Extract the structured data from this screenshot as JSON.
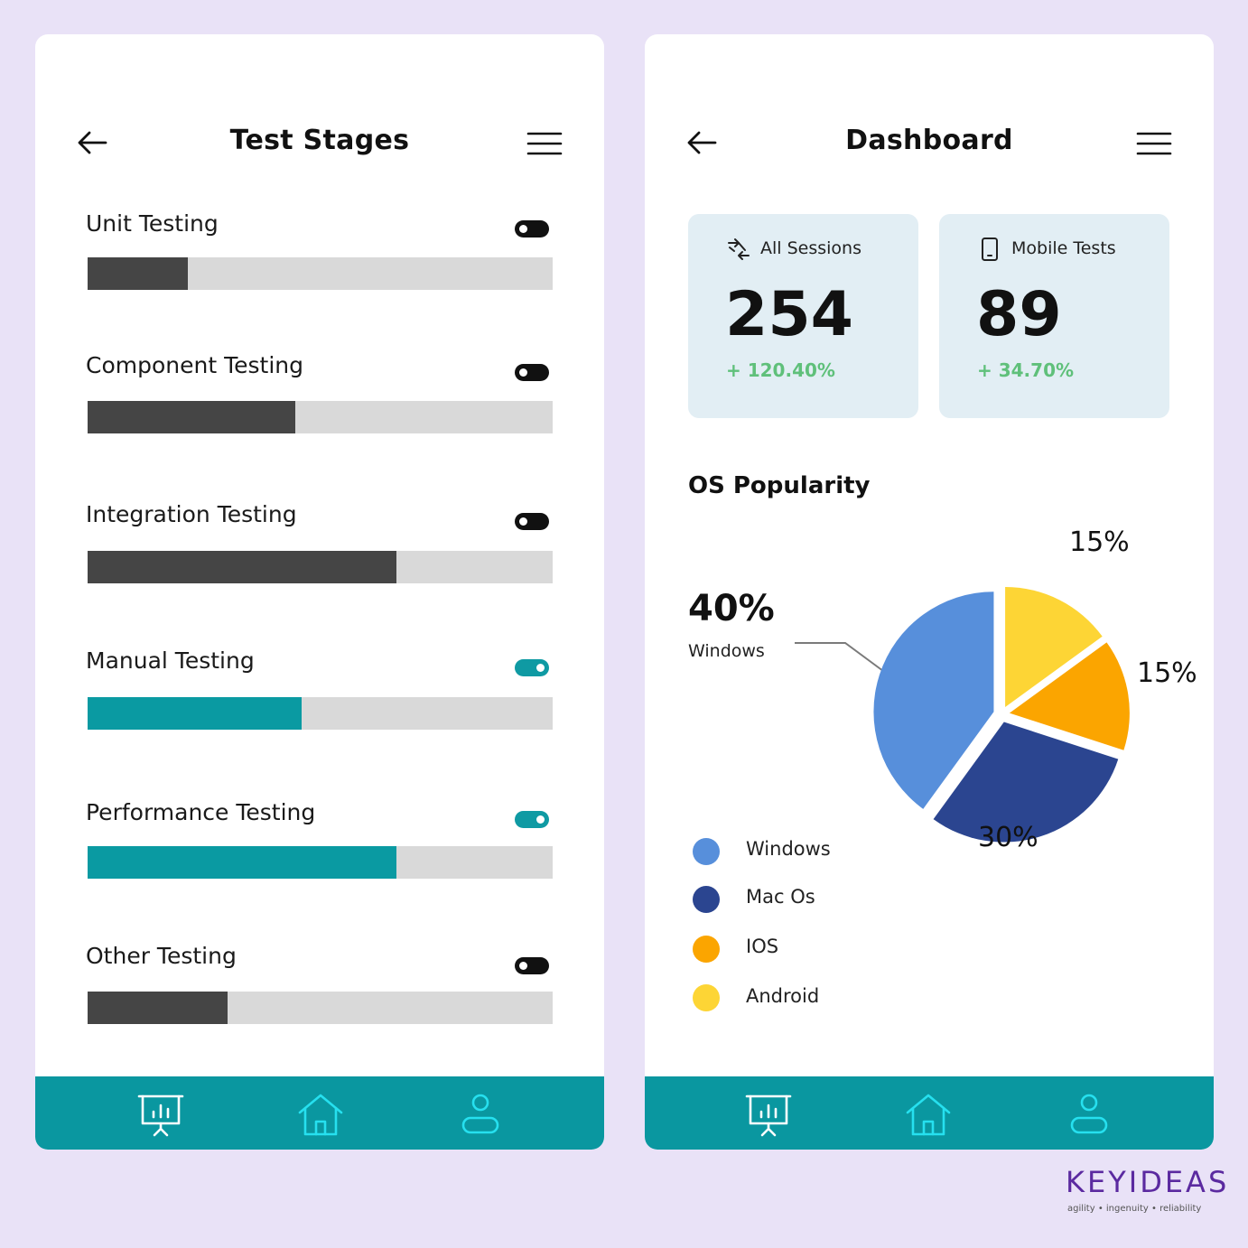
{
  "left_screen": {
    "title": "Test Stages",
    "stages": [
      {
        "label": "Unit Testing",
        "progress": 0.215,
        "enabled": false
      },
      {
        "label": "Component Testing",
        "progress": 0.447,
        "enabled": false
      },
      {
        "label": "Integration Testing",
        "progress": 0.665,
        "enabled": false
      },
      {
        "label": "Manual Testing",
        "progress": 0.461,
        "enabled": true
      },
      {
        "label": "Performance Testing",
        "progress": 0.665,
        "enabled": true
      },
      {
        "label": "Other Testing",
        "progress": 0.3,
        "enabled": false
      }
    ]
  },
  "right_screen": {
    "title": "Dashboard",
    "cards": [
      {
        "icon": "sessions-icon",
        "label": "All Sessions",
        "value": "254",
        "change": "+ 120.40%"
      },
      {
        "icon": "mobile-icon",
        "label": "Mobile Tests",
        "value": "89",
        "change": "+ 34.70%"
      }
    ],
    "os_title": "OS Popularity",
    "callout": {
      "value": "40%",
      "label": "Windows"
    },
    "chart_data": {
      "type": "pie",
      "title": "OS Popularity",
      "slices": [
        {
          "name": "Windows",
          "value": 40,
          "label": "40%",
          "color": "#578fdb"
        },
        {
          "name": "Mac Os",
          "value": 30,
          "label": "30%",
          "color": "#2b4590"
        },
        {
          "name": "IOS",
          "value": 15,
          "label": "15%",
          "color": "#fba500"
        },
        {
          "name": "Android",
          "value": 15,
          "label": "15%",
          "color": "#fdd535"
        }
      ],
      "legend_position": "bottom-left"
    }
  },
  "nav": [
    "presentation-chart-icon",
    "home-icon",
    "user-icon"
  ],
  "colors": {
    "teal": "#0a97a0",
    "dark_bar": "#454545",
    "track": "#d9d9d9",
    "positive": "#5fc07a",
    "background": "#e9e2f7"
  },
  "brand": {
    "name": "KEYIDEAS",
    "tagline": "agility  •  ingenuity  •  reliability"
  }
}
